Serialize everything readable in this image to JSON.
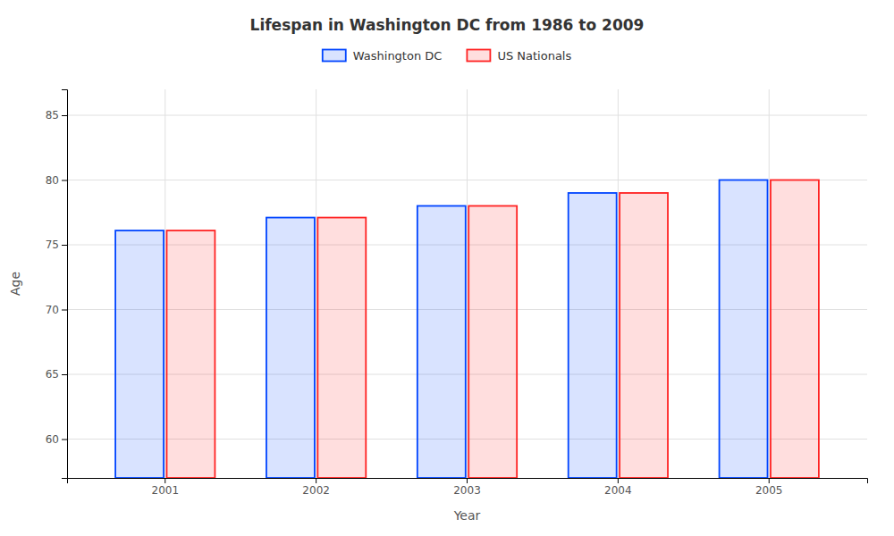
{
  "chart_data": {
    "type": "bar",
    "title": "Lifespan in Washington DC from 1986 to 2009",
    "xlabel": "Year",
    "ylabel": "Age",
    "categories": [
      "2001",
      "2002",
      "2003",
      "2004",
      "2005"
    ],
    "series": [
      {
        "name": "Washington DC",
        "color": "#0044ff",
        "values": [
          76.1,
          77.1,
          78.0,
          79.0,
          80.0
        ]
      },
      {
        "name": "US Nationals",
        "color": "#ff2222",
        "values": [
          76.1,
          77.1,
          78.0,
          79.0,
          80.0
        ]
      }
    ],
    "ylim": [
      57,
      87
    ],
    "yticks": [
      60,
      65,
      70,
      75,
      80,
      85
    ],
    "grid": true
  }
}
